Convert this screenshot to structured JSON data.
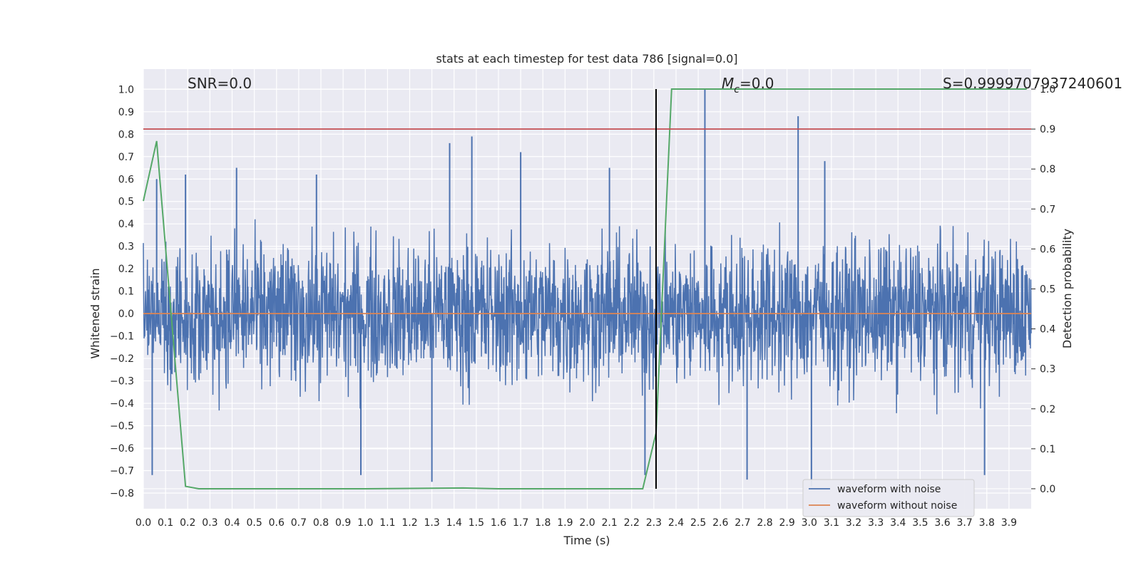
{
  "chart_data": {
    "type": "line",
    "title": "stats at each timestep for test data 786 [signal=0.0]",
    "xlabel": "Time (s)",
    "ylabel": "Whitened strain",
    "y2label": "Detection probability",
    "xlim": [
      0.0,
      4.0
    ],
    "ylim": [
      -0.87,
      1.09
    ],
    "y2lim": [
      -0.05,
      1.05
    ],
    "grid": true,
    "legend_position": "lower-right",
    "x_ticks": [
      "0.0",
      "0.1",
      "0.2",
      "0.3",
      "0.4",
      "0.5",
      "0.6",
      "0.7",
      "0.8",
      "0.9",
      "1.0",
      "1.1",
      "1.2",
      "1.3",
      "1.4",
      "1.5",
      "1.6",
      "1.7",
      "1.8",
      "1.9",
      "2.0",
      "2.1",
      "2.2",
      "2.3",
      "2.4",
      "2.5",
      "2.6",
      "2.7",
      "2.8",
      "2.9",
      "3.0",
      "3.1",
      "3.2",
      "3.3",
      "3.4",
      "3.5",
      "3.6",
      "3.7",
      "3.8",
      "3.9"
    ],
    "y_ticks": [
      "−0.8",
      "−0.7",
      "−0.6",
      "−0.5",
      "−0.4",
      "−0.3",
      "−0.2",
      "−0.1",
      "0.0",
      "0.1",
      "0.2",
      "0.3",
      "0.4",
      "0.5",
      "0.6",
      "0.7",
      "0.8",
      "0.9",
      "1.0"
    ],
    "y2_ticks": [
      "0.0",
      "0.1",
      "0.2",
      "0.3",
      "0.4",
      "0.5",
      "0.6",
      "0.7",
      "0.8",
      "0.9",
      "1.0"
    ],
    "annotations": {
      "snr": "SNR=0.0",
      "mc": "=0.0",
      "mc_symbol": "M",
      "mc_sub": "c",
      "s_value": "S=0.9999707937240601"
    },
    "series": [
      {
        "name": "waveform with noise",
        "color": "#4c72b0",
        "axis": "left",
        "description_values": {
          "envelope_typical": [
            -0.45,
            0.45
          ],
          "peak_max": 1.0,
          "peak_min": -0.77,
          "peaks": [
            {
              "x": 0.06,
              "y": 0.6
            },
            {
              "x": 0.19,
              "y": 0.62
            },
            {
              "x": 0.42,
              "y": 0.65
            },
            {
              "x": 0.78,
              "y": 0.62
            },
            {
              "x": 1.38,
              "y": 0.76
            },
            {
              "x": 1.48,
              "y": 0.79
            },
            {
              "x": 1.7,
              "y": 0.72
            },
            {
              "x": 2.1,
              "y": 0.65
            },
            {
              "x": 2.53,
              "y": 1.0
            },
            {
              "x": 2.95,
              "y": 0.88
            },
            {
              "x": 3.07,
              "y": 0.68
            },
            {
              "x": 0.04,
              "y": -0.72
            },
            {
              "x": 0.98,
              "y": -0.72
            },
            {
              "x": 1.3,
              "y": -0.75
            },
            {
              "x": 2.26,
              "y": -0.72
            },
            {
              "x": 2.72,
              "y": -0.74
            },
            {
              "x": 3.01,
              "y": -0.77
            },
            {
              "x": 3.79,
              "y": -0.72
            }
          ]
        }
      },
      {
        "name": "waveform without noise",
        "color": "#dd8452",
        "axis": "left",
        "x": [
          0.0,
          4.0
        ],
        "values": [
          0.0,
          0.0
        ]
      },
      {
        "name": "",
        "color": "#55a868",
        "axis": "right",
        "x": [
          0.0,
          0.06,
          0.19,
          0.25,
          0.5,
          1.0,
          1.44,
          1.6,
          2.0,
          2.25,
          2.31,
          2.38,
          3.0,
          3.5,
          3.98
        ],
        "values": [
          0.72,
          0.87,
          0.006,
          0.0,
          0.0,
          0.0,
          0.002,
          0.0,
          0.0,
          0.0,
          0.14,
          1.0,
          1.0,
          1.0,
          1.0
        ]
      }
    ],
    "reference_lines": [
      {
        "kind": "horizontal",
        "axis": "right",
        "y": 0.9,
        "color": "#c44e52"
      },
      {
        "kind": "vertical",
        "x": 2.31,
        "y_range_right": [
          0.0,
          1.0
        ],
        "color": "#000000"
      }
    ]
  }
}
